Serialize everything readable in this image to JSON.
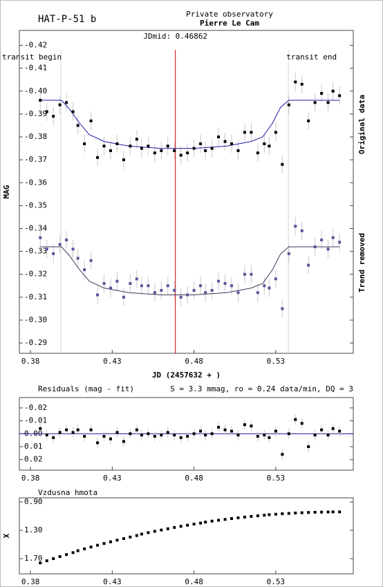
{
  "chart_data": [
    {
      "type": "scatter",
      "title": "HAT-P-51 b",
      "observatory": "Private observatory",
      "observer": "Pierre Le Cam",
      "xlabel": "JD (2457632 + )",
      "ylabel": "MAG",
      "y_inverted": true,
      "xlim": [
        0.3732,
        0.5774
      ],
      "ylim": [
        -0.4265,
        -0.2855
      ],
      "xticks": [
        0.38,
        0.43,
        0.48,
        0.53
      ],
      "yticks": [
        -0.42,
        -0.41,
        {
          "value": -0.4,
          "label": "-0.40"
        },
        -0.39,
        -0.38,
        -0.37,
        -0.36,
        -0.35,
        -0.34,
        -0.33,
        -0.32,
        -0.31,
        {
          "value": -0.3,
          "label": "-0.30"
        },
        -0.29
      ],
      "markers": [
        {
          "label": "transit begin",
          "x": 0.3986,
          "color": "#d4d4d4"
        },
        {
          "label": "JDmid: 0.46862",
          "x": 0.46862,
          "color": "#cc0000"
        },
        {
          "label": "transit end",
          "x": 0.5377,
          "color": "#d4d4d4"
        }
      ],
      "error_color": "#c8c8c8",
      "x": [
        0.386,
        0.39,
        0.394,
        0.398,
        0.402,
        0.406,
        0.409,
        0.413,
        0.417,
        0.421,
        0.425,
        0.429,
        0.433,
        0.437,
        0.441,
        0.445,
        0.448,
        0.452,
        0.456,
        0.46,
        0.464,
        0.468,
        0.472,
        0.476,
        0.48,
        0.484,
        0.487,
        0.491,
        0.495,
        0.499,
        0.503,
        0.507,
        0.511,
        0.515,
        0.519,
        0.523,
        0.526,
        0.53,
        0.534,
        0.538,
        0.542,
        0.546,
        0.55,
        0.554,
        0.558,
        0.562,
        0.565,
        0.569
      ],
      "fit_x": [
        0.386,
        0.399,
        0.404,
        0.41,
        0.416,
        0.425,
        0.44,
        0.46,
        0.48,
        0.5,
        0.515,
        0.522,
        0.528,
        0.533,
        0.538,
        0.569
      ],
      "series": [
        {
          "name": "Original data",
          "color": "#000000",
          "fit_color": "#1a1aa6",
          "values": [
            -0.396,
            -0.391,
            -0.389,
            -0.394,
            -0.395,
            -0.391,
            -0.385,
            -0.377,
            -0.387,
            -0.371,
            -0.376,
            -0.374,
            -0.377,
            -0.37,
            -0.376,
            -0.379,
            -0.375,
            -0.376,
            -0.373,
            -0.374,
            -0.376,
            -0.374,
            -0.372,
            -0.373,
            -0.375,
            -0.377,
            -0.374,
            -0.375,
            -0.38,
            -0.378,
            -0.377,
            -0.374,
            -0.382,
            -0.382,
            -0.373,
            -0.377,
            -0.376,
            -0.382,
            -0.368,
            -0.394,
            -0.404,
            -0.403,
            -0.387,
            -0.395,
            -0.399,
            -0.395,
            -0.4,
            -0.398
          ],
          "errors": [
            0.004,
            0.004,
            0.004,
            0.004,
            0.004,
            0.004,
            0.004,
            0.004,
            0.004,
            0.004,
            0.004,
            0.004,
            0.004,
            0.004,
            0.004,
            0.004,
            0.004,
            0.004,
            0.004,
            0.004,
            0.004,
            0.004,
            0.004,
            0.004,
            0.004,
            0.004,
            0.004,
            0.004,
            0.004,
            0.004,
            0.004,
            0.004,
            0.004,
            0.004,
            0.004,
            0.004,
            0.004,
            0.004,
            0.004,
            0.004,
            0.004,
            0.004,
            0.004,
            0.004,
            0.004,
            0.004,
            0.004,
            0.004
          ],
          "fit": [
            -0.396,
            -0.396,
            -0.392,
            -0.386,
            -0.381,
            -0.378,
            -0.376,
            -0.375,
            -0.375,
            -0.376,
            -0.378,
            -0.38,
            -0.386,
            -0.393,
            -0.396,
            -0.396
          ]
        },
        {
          "name": "Trend removed",
          "color": "#55559a",
          "fit_color": "#3a3a5a",
          "values": [
            -0.336,
            -0.331,
            -0.329,
            -0.333,
            -0.335,
            -0.331,
            -0.327,
            -0.322,
            -0.326,
            -0.311,
            -0.316,
            -0.314,
            -0.317,
            -0.31,
            -0.316,
            -0.318,
            -0.315,
            -0.315,
            -0.312,
            -0.313,
            -0.315,
            -0.313,
            -0.31,
            -0.311,
            -0.313,
            -0.315,
            -0.312,
            -0.313,
            -0.317,
            -0.316,
            -0.315,
            -0.312,
            -0.32,
            -0.32,
            -0.312,
            -0.315,
            -0.314,
            -0.318,
            -0.305,
            -0.329,
            -0.341,
            -0.339,
            -0.324,
            -0.332,
            -0.335,
            -0.331,
            -0.336,
            -0.334
          ],
          "errors": [
            0.004,
            0.004,
            0.004,
            0.004,
            0.004,
            0.004,
            0.004,
            0.004,
            0.004,
            0.004,
            0.004,
            0.004,
            0.004,
            0.004,
            0.004,
            0.004,
            0.004,
            0.004,
            0.004,
            0.004,
            0.004,
            0.004,
            0.004,
            0.004,
            0.004,
            0.004,
            0.004,
            0.004,
            0.004,
            0.004,
            0.004,
            0.004,
            0.004,
            0.004,
            0.004,
            0.004,
            0.004,
            0.004,
            0.004,
            0.004,
            0.004,
            0.004,
            0.004,
            0.004,
            0.004,
            0.004,
            0.004,
            0.004
          ],
          "fit": [
            -0.332,
            -0.332,
            -0.328,
            -0.322,
            -0.317,
            -0.314,
            -0.312,
            -0.311,
            -0.311,
            -0.312,
            -0.314,
            -0.316,
            -0.322,
            -0.329,
            -0.332,
            -0.332
          ]
        }
      ]
    },
    {
      "type": "scatter",
      "title": "Residuals (mag - fit)",
      "annotation": "S = 3.3 mmag, ro = 0.24 data/min, DQ = 3",
      "y_inverted": true,
      "xlim": [
        0.3732,
        0.5774
      ],
      "ylim": [
        -0.028,
        0.0282
      ],
      "xticks": [
        0.38,
        0.43,
        0.48,
        0.53
      ],
      "yticks": [
        -0.02,
        -0.01,
        {
          "value": 0,
          "label": "0.00"
        },
        0.01,
        0.02
      ],
      "reference_line": 0,
      "reference_color": "#1a1aa6",
      "color": "#000000",
      "error_color": "#c8c8c8",
      "x": [
        0.386,
        0.39,
        0.394,
        0.398,
        0.402,
        0.406,
        0.409,
        0.413,
        0.417,
        0.421,
        0.425,
        0.429,
        0.433,
        0.437,
        0.441,
        0.445,
        0.448,
        0.452,
        0.456,
        0.46,
        0.464,
        0.468,
        0.472,
        0.476,
        0.48,
        0.484,
        0.487,
        0.491,
        0.495,
        0.499,
        0.503,
        0.507,
        0.511,
        0.515,
        0.519,
        0.523,
        0.526,
        0.53,
        0.534,
        0.538,
        0.542,
        0.546,
        0.55,
        0.554,
        0.558,
        0.562,
        0.565,
        0.569
      ],
      "values": [
        -0.004,
        0.001,
        0.003,
        -0.001,
        -0.003,
        -0.001,
        -0.003,
        0.002,
        -0.003,
        0.007,
        0.002,
        0.004,
        -0.001,
        0.006,
        0.0,
        -0.003,
        0.001,
        0.0,
        0.002,
        0.001,
        -0.001,
        0.001,
        0.003,
        0.002,
        0.0,
        -0.002,
        0.001,
        0.0,
        -0.005,
        -0.003,
        -0.002,
        0.001,
        -0.007,
        -0.006,
        0.002,
        0.001,
        0.003,
        -0.002,
        0.016,
        0.0,
        -0.011,
        -0.008,
        0.01,
        0.001,
        -0.003,
        0.001,
        -0.004,
        -0.002
      ],
      "errors": [
        0.004,
        0.004,
        0.004,
        0.004,
        0.004,
        0.004,
        0.004,
        0.004,
        0.004,
        0.004,
        0.004,
        0.004,
        0.004,
        0.004,
        0.004,
        0.004,
        0.004,
        0.004,
        0.004,
        0.004,
        0.004,
        0.004,
        0.004,
        0.004,
        0.004,
        0.004,
        0.004,
        0.004,
        0.004,
        0.004,
        0.004,
        0.004,
        0.004,
        0.004,
        0.004,
        0.004,
        0.004,
        0.004,
        0.004,
        0.004,
        0.004,
        0.004,
        0.004,
        0.004,
        0.004,
        0.004,
        0.004,
        0.004
      ]
    },
    {
      "type": "scatter",
      "title": "Vzdusna hmota",
      "ylabel": "X",
      "y_inverted": true,
      "xlim": [
        0.3732,
        0.5774
      ],
      "ylim": [
        0.841,
        1.915
      ],
      "xticks": [
        0.38,
        0.43,
        0.48,
        0.53
      ],
      "yticks": [
        {
          "value": 0.9,
          "label": "0.90"
        },
        {
          "value": 1.3,
          "label": "1.30"
        },
        {
          "value": 1.7,
          "label": "1.70"
        }
      ],
      "color": "#000000",
      "x": [
        0.386,
        0.39,
        0.394,
        0.398,
        0.402,
        0.406,
        0.409,
        0.413,
        0.417,
        0.421,
        0.425,
        0.429,
        0.433,
        0.437,
        0.441,
        0.445,
        0.448,
        0.452,
        0.456,
        0.46,
        0.464,
        0.468,
        0.472,
        0.476,
        0.48,
        0.484,
        0.487,
        0.491,
        0.495,
        0.499,
        0.503,
        0.507,
        0.511,
        0.515,
        0.519,
        0.523,
        0.526,
        0.53,
        0.534,
        0.538,
        0.542,
        0.546,
        0.55,
        0.554,
        0.558,
        0.562,
        0.565,
        0.569
      ],
      "values": [
        1.76,
        1.73,
        1.7,
        1.671,
        1.643,
        1.615,
        1.588,
        1.562,
        1.536,
        1.511,
        1.486,
        1.462,
        1.439,
        1.417,
        1.395,
        1.374,
        1.353,
        1.333,
        1.314,
        1.296,
        1.278,
        1.26,
        1.244,
        1.228,
        1.212,
        1.198,
        1.184,
        1.17,
        1.158,
        1.146,
        1.134,
        1.123,
        1.113,
        1.104,
        1.095,
        1.087,
        1.079,
        1.073,
        1.066,
        1.061,
        1.056,
        1.052,
        1.048,
        1.045,
        1.043,
        1.041,
        1.04,
        1.04
      ]
    }
  ]
}
